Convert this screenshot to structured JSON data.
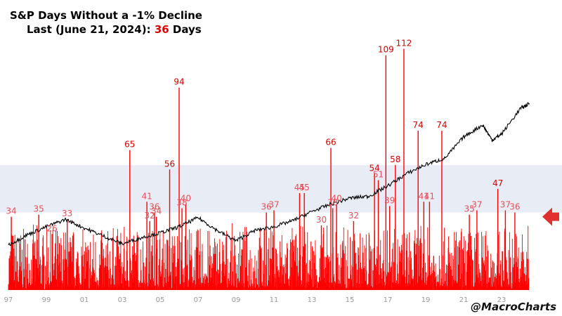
{
  "title": {
    "line1": "S&P Days Without a -1% Decline",
    "line2_prefix": "Last (June 21, 2024): ",
    "line2_value": "36",
    "line2_suffix": " Days"
  },
  "watermark": "@MacroCharts",
  "colors": {
    "streak_bars": "#ff0000",
    "index_line": "#000000",
    "band": "#e8ecf5",
    "label_major": "#d40000",
    "label_minor": "#e8505a",
    "arrow": "#e03030",
    "axis_ticks": "#9a9a9a"
  },
  "chart_data": {
    "type": "bar",
    "series": [
      {
        "name": "",
        "type": "bar",
        "points": [
          {
            "x": 1997.15,
            "y": 34
          },
          {
            "x": 1998.6,
            "y": 35
          },
          {
            "x": 1999.3,
            "y": 26
          },
          {
            "x": 2000.1,
            "y": 33
          },
          {
            "x": 2003.4,
            "y": 65
          },
          {
            "x": 2004.3,
            "y": 41
          },
          {
            "x": 2004.45,
            "y": 32
          },
          {
            "x": 2004.7,
            "y": 36
          },
          {
            "x": 2004.8,
            "y": 34
          },
          {
            "x": 2005.5,
            "y": 56
          },
          {
            "x": 2006.0,
            "y": 94
          },
          {
            "x": 2006.15,
            "y": 38
          },
          {
            "x": 2006.35,
            "y": 40
          },
          {
            "x": 2010.6,
            "y": 36
          },
          {
            "x": 2011.0,
            "y": 37
          },
          {
            "x": 2012.35,
            "y": 45
          },
          {
            "x": 2012.6,
            "y": 45
          },
          {
            "x": 2013.5,
            "y": 30
          },
          {
            "x": 2014.0,
            "y": 66
          },
          {
            "x": 2014.1,
            "y": 38
          },
          {
            "x": 2014.3,
            "y": 40
          },
          {
            "x": 2015.2,
            "y": 32
          },
          {
            "x": 2016.3,
            "y": 54
          },
          {
            "x": 2016.5,
            "y": 51
          },
          {
            "x": 2016.9,
            "y": 109
          },
          {
            "x": 2017.1,
            "y": 39
          },
          {
            "x": 2017.4,
            "y": 58
          },
          {
            "x": 2017.85,
            "y": 112
          },
          {
            "x": 2018.6,
            "y": 74
          },
          {
            "x": 2018.9,
            "y": 41
          },
          {
            "x": 2019.2,
            "y": 41
          },
          {
            "x": 2019.85,
            "y": 74
          },
          {
            "x": 2021.3,
            "y": 35
          },
          {
            "x": 2021.7,
            "y": 37
          },
          {
            "x": 2022.8,
            "y": 47
          },
          {
            "x": 2023.2,
            "y": 37
          },
          {
            "x": 2023.7,
            "y": 36
          }
        ]
      },
      {
        "name": "",
        "type": "line",
        "points": [
          {
            "x": 1997.0,
            "y": 0.38
          },
          {
            "x": 1998.0,
            "y": 0.55
          },
          {
            "x": 1999.0,
            "y": 0.68
          },
          {
            "x": 2000.0,
            "y": 0.8
          },
          {
            "x": 2001.0,
            "y": 0.66
          },
          {
            "x": 2002.0,
            "y": 0.53
          },
          {
            "x": 2003.0,
            "y": 0.4
          },
          {
            "x": 2004.0,
            "y": 0.5
          },
          {
            "x": 2005.0,
            "y": 0.58
          },
          {
            "x": 2006.0,
            "y": 0.68
          },
          {
            "x": 2007.0,
            "y": 0.83
          },
          {
            "x": 2008.0,
            "y": 0.62
          },
          {
            "x": 2009.0,
            "y": 0.45
          },
          {
            "x": 2010.0,
            "y": 0.62
          },
          {
            "x": 2011.0,
            "y": 0.68
          },
          {
            "x": 2012.0,
            "y": 0.78
          },
          {
            "x": 2013.0,
            "y": 0.93
          },
          {
            "x": 2014.0,
            "y": 1.05
          },
          {
            "x": 2015.0,
            "y": 1.15
          },
          {
            "x": 2016.0,
            "y": 1.18
          },
          {
            "x": 2017.0,
            "y": 1.35
          },
          {
            "x": 2018.0,
            "y": 1.55
          },
          {
            "x": 2019.0,
            "y": 1.7
          },
          {
            "x": 2020.0,
            "y": 1.8
          },
          {
            "x": 2021.0,
            "y": 2.15
          },
          {
            "x": 2022.0,
            "y": 2.35
          },
          {
            "x": 2022.5,
            "y": 2.1
          },
          {
            "x": 2023.0,
            "y": 2.2
          },
          {
            "x": 2024.0,
            "y": 2.62
          },
          {
            "x": 2024.47,
            "y": 2.7
          }
        ]
      }
    ],
    "x_ticks": [
      "97",
      "99",
      "01",
      "03",
      "05",
      "07",
      "09",
      "11",
      "13",
      "15",
      "17",
      "19",
      "21",
      "23"
    ],
    "x_tick_values": [
      1997,
      1999,
      2001,
      2003,
      2005,
      2007,
      2009,
      2011,
      2013,
      2015,
      2017,
      2019,
      2021,
      2023
    ],
    "annotations": [
      {
        "text": "34",
        "x": 1997.15,
        "y": 34,
        "major": false
      },
      {
        "text": "35",
        "x": 1998.6,
        "y": 35,
        "major": false
      },
      {
        "text": "26",
        "x": 1999.3,
        "y": 26,
        "major": false
      },
      {
        "text": "33",
        "x": 2000.1,
        "y": 33,
        "major": false
      },
      {
        "text": "65",
        "x": 2003.4,
        "y": 65,
        "major": true
      },
      {
        "text": "41",
        "x": 2004.3,
        "y": 41,
        "major": false
      },
      {
        "text": "32",
        "x": 2004.45,
        "y": 32,
        "major": false
      },
      {
        "text": "36",
        "x": 2004.7,
        "y": 36,
        "major": false
      },
      {
        "text": "34",
        "x": 2004.8,
        "y": 34,
        "major": false
      },
      {
        "text": "56",
        "x": 2005.5,
        "y": 56,
        "major": true
      },
      {
        "text": "94",
        "x": 2006.0,
        "y": 94,
        "major": true
      },
      {
        "text": "38",
        "x": 2006.15,
        "y": 38,
        "major": false
      },
      {
        "text": "40",
        "x": 2006.35,
        "y": 40,
        "major": false
      },
      {
        "text": "36",
        "x": 2010.6,
        "y": 36,
        "major": false
      },
      {
        "text": "37",
        "x": 2011.0,
        "y": 37,
        "major": false
      },
      {
        "text": "45",
        "x": 2012.35,
        "y": 45,
        "major": false
      },
      {
        "text": "45",
        "x": 2012.6,
        "y": 45,
        "major": false
      },
      {
        "text": "30",
        "x": 2013.5,
        "y": 30,
        "major": false
      },
      {
        "text": "66",
        "x": 2014.0,
        "y": 66,
        "major": true
      },
      {
        "text": "38",
        "x": 2014.1,
        "y": 38,
        "major": false
      },
      {
        "text": "40",
        "x": 2014.3,
        "y": 40,
        "major": false
      },
      {
        "text": "32",
        "x": 2015.2,
        "y": 32,
        "major": false
      },
      {
        "text": "54",
        "x": 2016.3,
        "y": 54,
        "major": true
      },
      {
        "text": "51",
        "x": 2016.5,
        "y": 51,
        "major": false
      },
      {
        "text": "109",
        "x": 2016.9,
        "y": 109,
        "major": true
      },
      {
        "text": "39",
        "x": 2017.1,
        "y": 39,
        "major": false
      },
      {
        "text": "58",
        "x": 2017.4,
        "y": 58,
        "major": true
      },
      {
        "text": "112",
        "x": 2017.85,
        "y": 112,
        "major": true
      },
      {
        "text": "74",
        "x": 2018.6,
        "y": 74,
        "major": true
      },
      {
        "text": "41",
        "x": 2018.9,
        "y": 41,
        "major": false
      },
      {
        "text": "41",
        "x": 2019.2,
        "y": 41,
        "major": false
      },
      {
        "text": "74",
        "x": 2019.85,
        "y": 74,
        "major": true
      },
      {
        "text": "35",
        "x": 2021.3,
        "y": 35,
        "major": false
      },
      {
        "text": "37",
        "x": 2021.7,
        "y": 37,
        "major": false
      },
      {
        "text": "47",
        "x": 2022.8,
        "y": 47,
        "major": true
      },
      {
        "text": "37",
        "x": 2023.2,
        "y": 37,
        "major": false
      },
      {
        "text": "36",
        "x": 2023.7,
        "y": 36,
        "major": false
      }
    ],
    "xlim": [
      1997,
      2025
    ],
    "ylim": [
      0,
      120
    ],
    "band_range": [
      36,
      58
    ],
    "grid": false,
    "legend": "none"
  }
}
